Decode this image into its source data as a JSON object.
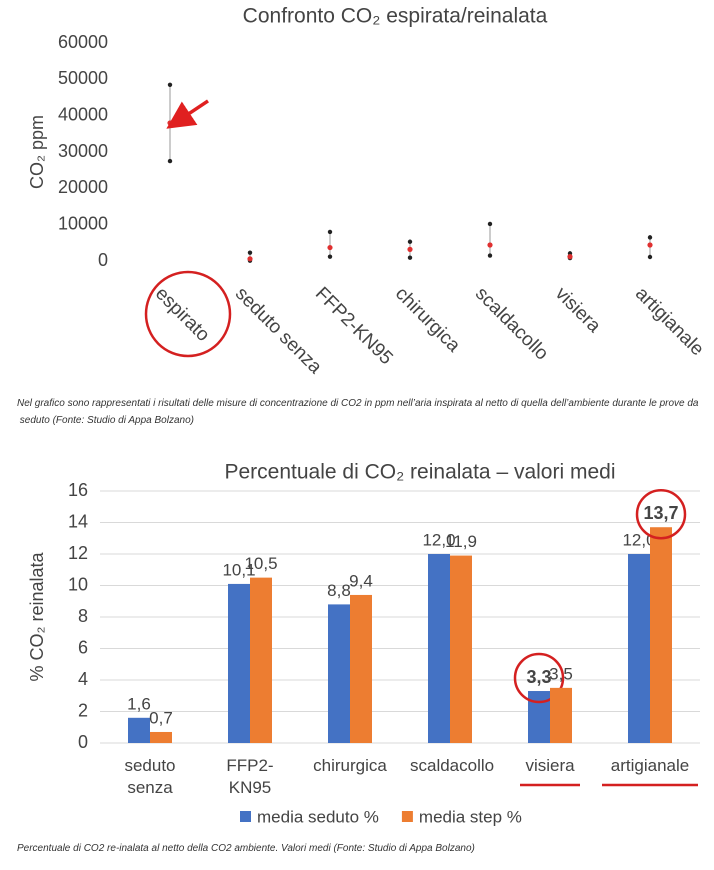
{
  "chart_data": [
    {
      "type": "errorbar",
      "title": "Confronto CO₂ espirata/reinalata",
      "y_label": "CO₂ ppm",
      "categories": [
        "espirato",
        "seduto senza",
        "FFP2-KN95",
        "chirurgica",
        "scaldacollo",
        "visiera",
        "artigianale"
      ],
      "values": [
        38000,
        600,
        3700,
        3200,
        4400,
        1200,
        4400
      ],
      "lows": [
        27500,
        100,
        1200,
        900,
        1500,
        800,
        1100
      ],
      "highs": [
        48500,
        2300,
        8000,
        5300,
        10200,
        2100,
        6500
      ],
      "color": "#e03030",
      "ylim": [
        0,
        60000
      ],
      "yticks": [
        0,
        10000,
        20000,
        30000,
        40000,
        50000,
        60000
      ],
      "grid": false,
      "caption": "Nel grafico sono rappresentati i risultati delle misure di concentrazione di CO2 in ppm nell’aria inspirata al netto di quella dell’ambiente durante le prove da seduto (Fonte: Studio di Appa Bolzano)"
    },
    {
      "type": "bar",
      "title": "Percentuale di CO₂ reinalata – valori medi",
      "y_label": "% CO₂ reinalata",
      "categories": [
        "seduto senza",
        "FFP2-KN95",
        "chirurgica",
        "scaldacollo",
        "visiera",
        "artigianale"
      ],
      "series": [
        {
          "name": "media seduto %",
          "color": "#4472c4",
          "values": [
            1.6,
            10.1,
            8.8,
            12.0,
            3.3,
            12.0
          ],
          "value_labels": [
            "1,6",
            "10,1",
            "8,8",
            "12,0",
            "3,3",
            "12,0"
          ]
        },
        {
          "name": "media step %",
          "color": "#ed7d31",
          "values": [
            0.7,
            10.5,
            9.4,
            11.9,
            3.5,
            13.7
          ],
          "value_labels": [
            "0,7",
            "10,5",
            "9,4",
            "11,9",
            "3,5",
            "13,7"
          ]
        }
      ],
      "ylim": [
        0,
        16
      ],
      "yticks": [
        0,
        2,
        4,
        6,
        8,
        10,
        12,
        14,
        16
      ],
      "grid": true,
      "caption": "Percentuale di CO2 re-inalata al netto della CO2 ambiente. Valori medi (Fonte: Studio di Appa Bolzano)"
    }
  ]
}
